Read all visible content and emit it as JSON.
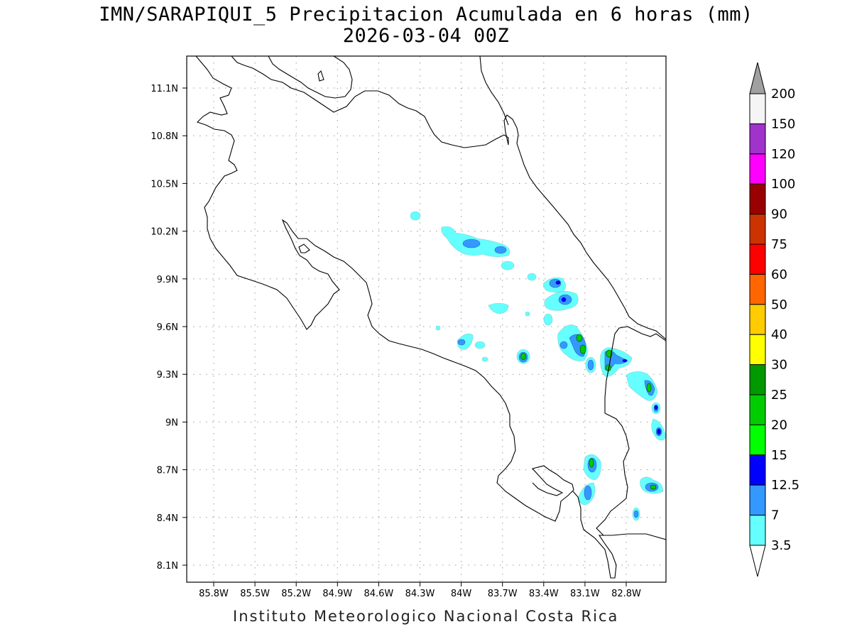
{
  "title_line1": "IMN/SARAPIQUI_5 Precipitacion Acumulada en 6 horas (mm)",
  "title_line2": "2026-03-04 00Z",
  "footer": "Instituto Meteorologico Nacional Costa Rica",
  "map": {
    "lon_range": [
      -86.0,
      -82.5
    ],
    "lat_range": [
      8.0,
      11.3
    ],
    "lon_ticks": [
      "85.8W",
      "85.5W",
      "85.2W",
      "84.9W",
      "84.6W",
      "84.3W",
      "84W",
      "83.7W",
      "83.4W",
      "83.1W",
      "82.8W"
    ],
    "lat_ticks": [
      "11.1N",
      "10.8N",
      "10.5N",
      "10.2N",
      "9.9N",
      "9.6N",
      "9.3N",
      "9N",
      "8.7N",
      "8.4N",
      "8.1N"
    ],
    "grid": "dotted"
  },
  "colorbar": {
    "labels": [
      "200",
      "150",
      "120",
      "100",
      "90",
      "75",
      "60",
      "50",
      "40",
      "30",
      "25",
      "20",
      "15",
      "12.5",
      "7",
      "3.5"
    ],
    "colors": [
      "#a0a0a0",
      "#f5f5f5",
      "#a033cc",
      "#ff00ff",
      "#990000",
      "#cc3300",
      "#ff0000",
      "#ff6600",
      "#ffcc00",
      "#ffff00",
      "#009900",
      "#00cc00",
      "#00ff00",
      "#0000ff",
      "#3399ff",
      "#66ffff",
      "#ffffff"
    ]
  }
}
